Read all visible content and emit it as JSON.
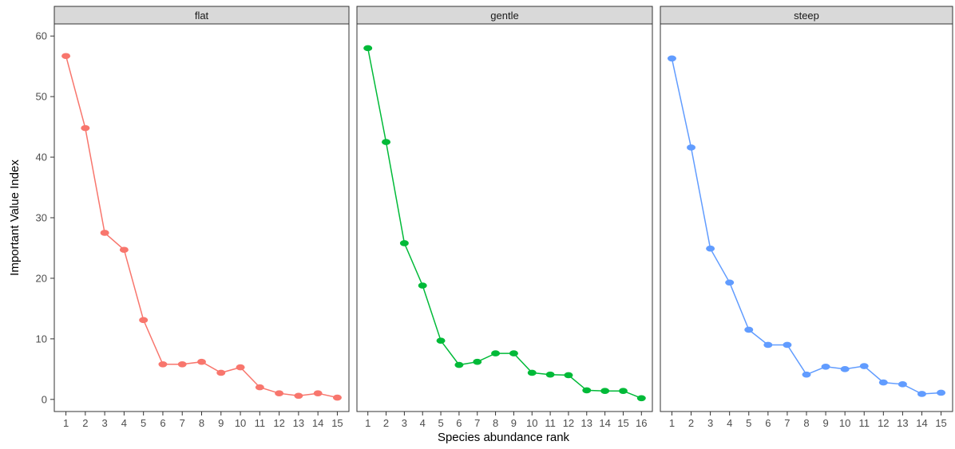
{
  "chart_data": {
    "type": "line",
    "xlabel": "Species abundance rank",
    "ylabel": "Important Value Index",
    "ylim": [
      -2,
      62
    ],
    "yticks": [
      0,
      10,
      20,
      30,
      40,
      50,
      60
    ],
    "ytick_labels": [
      "0",
      "10",
      "20",
      "30",
      "40",
      "50",
      "60"
    ],
    "grid": false,
    "legend": "none",
    "facets": [
      {
        "label": "flat",
        "color": "#F8766D",
        "x": [
          1,
          2,
          3,
          4,
          5,
          6,
          7,
          8,
          9,
          10,
          11,
          12,
          13,
          14,
          15
        ],
        "x_labels": [
          "1",
          "2",
          "3",
          "4",
          "5",
          "6",
          "7",
          "8",
          "9",
          "10",
          "11",
          "12",
          "13",
          "14",
          "15"
        ],
        "values": [
          56.7,
          44.8,
          27.5,
          24.7,
          13.1,
          5.8,
          5.8,
          6.2,
          4.4,
          5.3,
          2.0,
          1.0,
          0.6,
          1.0,
          0.3
        ]
      },
      {
        "label": "gentle",
        "color": "#00BA38",
        "x": [
          1,
          2,
          3,
          4,
          5,
          6,
          7,
          8,
          9,
          10,
          11,
          12,
          13,
          14,
          15,
          16
        ],
        "x_labels": [
          "1",
          "2",
          "3",
          "4",
          "5",
          "6",
          "7",
          "8",
          "9",
          "10",
          "11",
          "12",
          "13",
          "14",
          "15",
          "16"
        ],
        "values": [
          58.0,
          42.5,
          25.8,
          18.8,
          9.7,
          5.7,
          6.2,
          7.6,
          7.6,
          4.4,
          4.1,
          4.0,
          1.5,
          1.4,
          1.4,
          0.2
        ]
      },
      {
        "label": "steep",
        "color": "#619CFF",
        "x": [
          1,
          2,
          3,
          4,
          5,
          6,
          7,
          8,
          9,
          10,
          11,
          12,
          13,
          14,
          15
        ],
        "x_labels": [
          "1",
          "2",
          "3",
          "4",
          "5",
          "6",
          "7",
          "8",
          "9",
          "10",
          "11",
          "12",
          "13",
          "14",
          "15"
        ],
        "values": [
          56.3,
          41.6,
          24.9,
          19.3,
          11.5,
          9.0,
          9.0,
          4.1,
          5.4,
          5.0,
          5.5,
          2.8,
          2.5,
          0.9,
          1.1
        ]
      }
    ]
  }
}
